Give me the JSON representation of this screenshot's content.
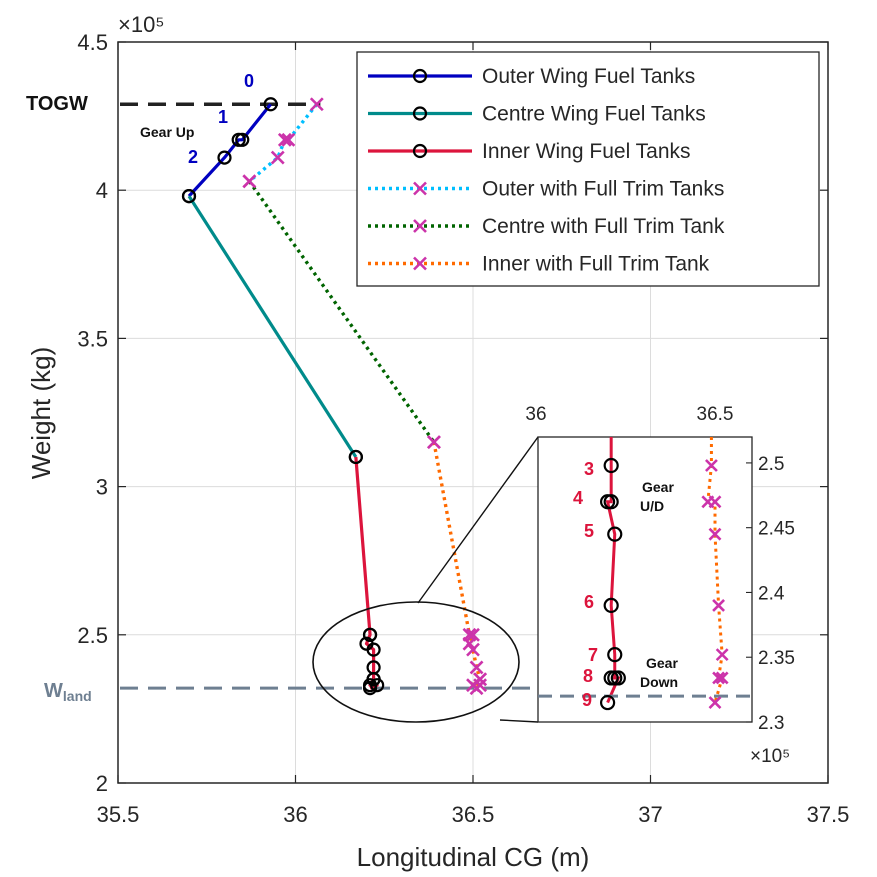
{
  "colors": {
    "outer": "#0000c0",
    "centre": "#008b8b",
    "inner": "#dc143c",
    "outer_trim": "#00bfff",
    "centre_trim": "#006400",
    "inner_trim": "#ff6a00",
    "marker_x": "#cc33aa",
    "land": "#6e7f91",
    "togw": "#222222"
  },
  "chart_data": {
    "type": "line",
    "xlabel": "Longitudinal CG (m)",
    "ylabel": "Weight (kg)",
    "xlim": [
      35.5,
      37.5
    ],
    "ylim": [
      200000,
      450000
    ],
    "x_ticks": [
      "35.5",
      "36",
      "36.5",
      "37",
      "37.5"
    ],
    "y_ticks": [
      "2",
      "2.5",
      "3",
      "3.5",
      "4",
      "4.5"
    ],
    "y_exponent": "×10⁵",
    "grid": true,
    "legend_position": "top-right",
    "series": [
      {
        "name": "Outer Wing Fuel Tanks",
        "style": "solid",
        "marker": "o",
        "x": [
          35.93,
          35.85,
          35.84,
          35.8,
          35.7
        ],
        "y": [
          429000,
          417000,
          417000,
          411000,
          398000
        ]
      },
      {
        "name": "Centre Wing Fuel Tanks",
        "style": "solid",
        "marker": "o",
        "x": [
          35.7,
          36.17
        ],
        "y": [
          398000,
          310000
        ]
      },
      {
        "name": "Inner Wing Fuel Tanks",
        "style": "solid",
        "marker": "o",
        "x": [
          36.17,
          36.21,
          36.21,
          36.2,
          36.22,
          36.22,
          36.22,
          36.22,
          36.21,
          36.23,
          36.21
        ],
        "y": [
          310000,
          250000,
          250000,
          247000,
          245000,
          239000,
          235000,
          235000,
          233000,
          233000,
          232000
        ]
      },
      {
        "name": "Outer with Full Trim Tanks",
        "style": "dotted",
        "marker": "x",
        "x": [
          36.06,
          35.98,
          35.97,
          35.95,
          35.87
        ],
        "y": [
          429000,
          417000,
          417000,
          411000,
          403000
        ]
      },
      {
        "name": "Centre with Full Trim Tank",
        "style": "dotted",
        "marker": "x",
        "x": [
          35.87,
          36.39
        ],
        "y": [
          403000,
          315000
        ]
      },
      {
        "name": "Inner with Full Trim Tank",
        "style": "dotted",
        "marker": "x",
        "x": [
          36.39,
          36.49,
          36.5,
          36.49,
          36.5,
          36.51,
          36.52,
          36.52,
          36.5,
          36.52,
          36.51
        ],
        "y": [
          315000,
          250000,
          250000,
          247000,
          245000,
          239000,
          235000,
          235000,
          233000,
          233000,
          232000
        ]
      }
    ],
    "reference_lines": [
      {
        "label": "TOGW",
        "y": 429000
      },
      {
        "label": "W",
        "label_sub": "land",
        "y": 232000
      }
    ],
    "annotations": {
      "outer_points": [
        "0",
        "1",
        "2"
      ],
      "gear_up": "Gear Up"
    },
    "inset": {
      "xlim": [
        36.0,
        36.5
      ],
      "ylim": [
        230000,
        252000
      ],
      "x_ticks": [
        "36",
        "36.5"
      ],
      "y_ticks": [
        "2.3",
        "2.35",
        "2.4",
        "2.45",
        "2.5"
      ],
      "y_exponent": "×10⁵",
      "circles": {
        "x": [
          36.21,
          36.21,
          36.2,
          36.22,
          36.21,
          36.22,
          36.22,
          36.21,
          36.23,
          36.2
        ],
        "y": [
          249800,
          247000,
          247000,
          244500,
          239000,
          235200,
          233400,
          233400,
          233400,
          231500
        ]
      },
      "crosses": {
        "x": [
          36.49,
          36.48,
          36.5,
          36.5,
          36.51,
          36.52,
          36.51,
          36.52,
          36.5
        ],
        "y": [
          249800,
          247000,
          247000,
          244500,
          239000,
          235200,
          233400,
          233400,
          231500
        ]
      },
      "land_y": 232000,
      "point_labels": [
        "3",
        "4",
        "5",
        "6",
        "7",
        "8",
        "9"
      ],
      "gear_ud": [
        "Gear",
        "U/D"
      ],
      "gear_down": [
        "Gear",
        "Down"
      ]
    }
  }
}
